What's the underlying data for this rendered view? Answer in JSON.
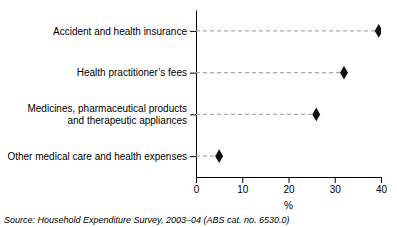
{
  "chart_data": {
    "type": "lollipop",
    "orientation": "horizontal",
    "categories": [
      "Other medical care and health expenses",
      "Medicines, pharmaceutical products\nand therapeutic appliances",
      "Health practitioner’s fees",
      "Accident and health insurance"
    ],
    "values": [
      5.0,
      26.0,
      32.0,
      39.5
    ],
    "color": "#111111",
    "marker": "diamond",
    "line_style": "dashed",
    "xlim": [
      0,
      40
    ],
    "xticks": [
      0,
      10,
      20,
      30,
      40
    ],
    "xlabel": "%",
    "annotations": [
      "Source: Household Expenditure Survey, 2003–04 (ABS cat. no. 6530.0)"
    ],
    "grid": false
  }
}
